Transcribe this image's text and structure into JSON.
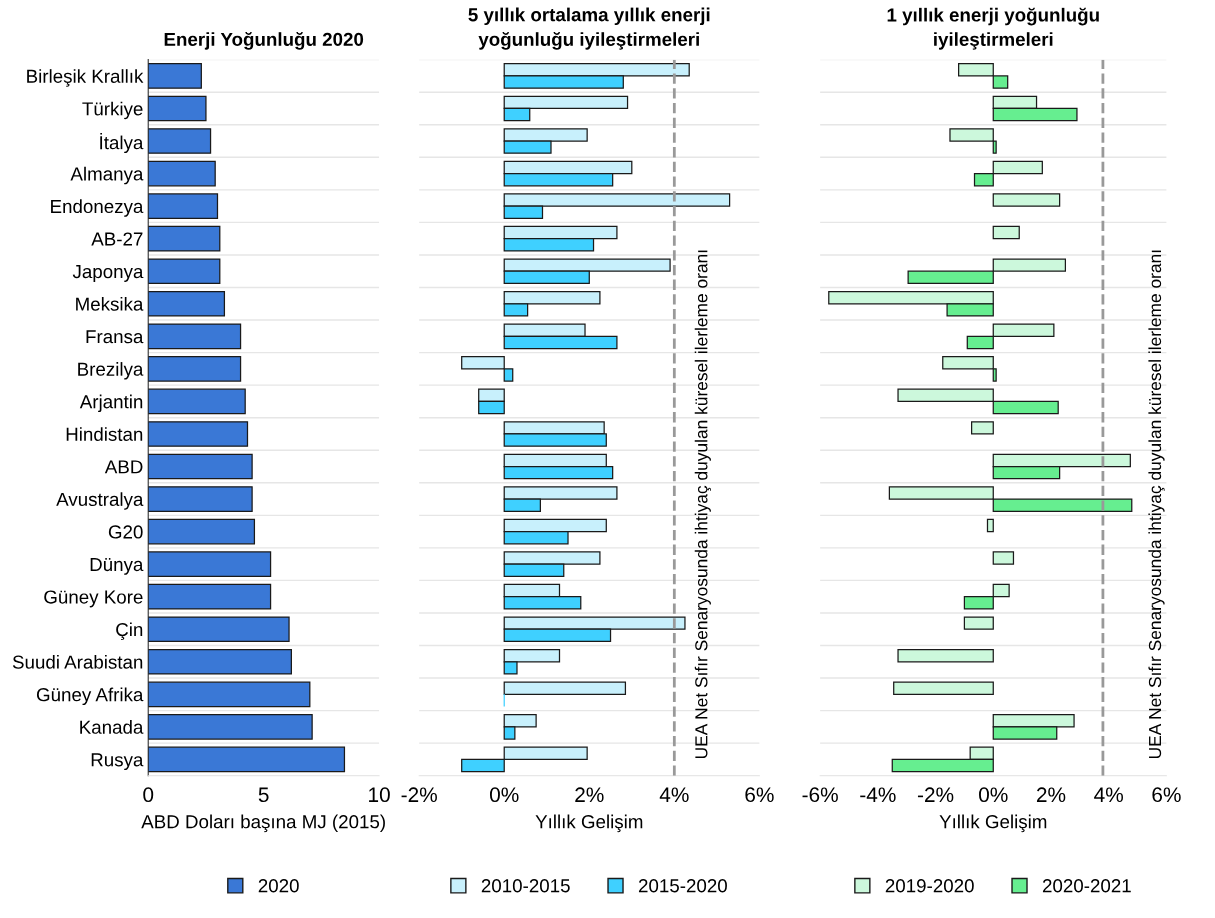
{
  "chart_data": [
    {
      "type": "bar",
      "orientation": "horizontal",
      "title": "Enerji Yoğunluğu 2020",
      "xlabel": "ABD Doları başına MJ (2015)",
      "categories": [
        "Birleşik Krallık",
        "Türkiye",
        "İtalya",
        "Almanya",
        "Endonezya",
        "AB-27",
        "Japonya",
        "Meksika",
        "Fransa",
        "Brezilya",
        "Arjantin",
        "Hindistan",
        "ABD",
        "Avustralya",
        "G20",
        "Dünya",
        "Güney Kore",
        "Çin",
        "Suudi Arabistan",
        "Güney Afrika",
        "Kanada",
        "Rusya"
      ],
      "series": [
        {
          "name": "2020",
          "color": "#3a78d6",
          "values": [
            2.3,
            2.5,
            2.7,
            2.9,
            3.0,
            3.1,
            3.1,
            3.3,
            4.0,
            4.0,
            4.2,
            4.3,
            4.5,
            4.5,
            4.6,
            5.3,
            5.3,
            6.1,
            6.2,
            7.0,
            7.1,
            8.5
          ]
        }
      ],
      "xlim": [
        0,
        10
      ],
      "xticks": [
        0,
        5,
        10
      ],
      "grid": "y",
      "legend": "bottom"
    },
    {
      "type": "bar",
      "orientation": "horizontal",
      "title": "5 yıllık ortalama yıllık enerji yoğunluğu iyileştirmeleri",
      "xlabel": "Yıllık Gelişim",
      "categories": [
        null,
        null,
        null,
        null,
        null,
        null,
        null,
        null,
        null,
        null,
        null,
        null,
        null,
        null,
        null,
        null,
        null,
        null,
        null,
        null,
        null,
        null
      ],
      "series": [
        {
          "name": "2010-2015",
          "color": "#c8f0fc",
          "values": [
            4.35,
            2.9,
            1.95,
            3.0,
            5.3,
            2.65,
            3.9,
            2.25,
            1.9,
            -1.0,
            -0.6,
            2.35,
            2.4,
            2.65,
            2.4,
            2.25,
            1.3,
            4.25,
            1.3,
            2.85,
            0.75,
            1.95
          ]
        },
        {
          "name": "2015-2020",
          "color": "#3fd0ff",
          "values": [
            2.8,
            0.6,
            1.1,
            2.55,
            0.9,
            2.1,
            2.0,
            0.55,
            2.65,
            0.2,
            -0.6,
            2.4,
            2.55,
            0.85,
            1.5,
            1.4,
            1.8,
            2.5,
            0.3,
            0,
            0.25,
            -1.0
          ]
        }
      ],
      "xlim": [
        -2,
        6
      ],
      "xticks": [
        {
          "value": -2,
          "label": "-2%"
        },
        {
          "value": 0,
          "label": "0%"
        },
        {
          "value": 2,
          "label": "2%"
        },
        {
          "value": 4,
          "label": "4%"
        },
        {
          "value": 6,
          "label": "6%"
        }
      ],
      "ref_lines": [
        {
          "axis": "x",
          "value": 4,
          "label": "UEA Net Sıfır Senaryosunda ihtiyaç duyulan küresel ilerleme oranı",
          "color": "#999999",
          "line_style": "dashed"
        }
      ],
      "tick_labels": "x",
      "grid": "y",
      "legend": "bottom"
    },
    {
      "type": "bar",
      "orientation": "horizontal",
      "title": "1 yıllık enerji yoğunluğu iyileştirmeleri",
      "xlabel": "Yıllık Gelişim",
      "categories": [
        null,
        null,
        null,
        null,
        null,
        null,
        null,
        null,
        null,
        null,
        null,
        null,
        null,
        null,
        null,
        null,
        null,
        null,
        null,
        null,
        null,
        null
      ],
      "series": [
        {
          "name": "2019-2020",
          "color": "#ccf8dc",
          "values": [
            -1.2,
            1.5,
            -1.5,
            1.7,
            2.3,
            0.9,
            2.5,
            -5.7,
            2.1,
            -1.75,
            -3.3,
            -0.75,
            4.75,
            -3.6,
            -0.2,
            0.7,
            0.55,
            -1.0,
            -3.3,
            -3.45,
            2.8,
            -0.8
          ]
        },
        {
          "name": "2020-2021",
          "color": "#66ee90",
          "values": [
            0.5,
            2.9,
            0.1,
            -0.65,
            null,
            null,
            -2.95,
            -1.6,
            -0.9,
            0.1,
            2.25,
            null,
            2.3,
            4.8,
            null,
            null,
            -1.0,
            null,
            null,
            null,
            2.2,
            -3.5
          ]
        }
      ],
      "xlim": [
        -6,
        6
      ],
      "xticks": [
        {
          "value": -6,
          "label": "-6%"
        },
        {
          "value": -4,
          "label": "-4%"
        },
        {
          "value": -2,
          "label": "-2%"
        },
        {
          "value": 0,
          "label": "0%"
        },
        {
          "value": 2,
          "label": "2%"
        },
        {
          "value": 4,
          "label": "4%"
        },
        {
          "value": 6,
          "label": "6%"
        }
      ],
      "ref_lines": [
        {
          "axis": "x",
          "value": 3.8,
          "label": "UEA Net Sıfır Senaryosunda ihtiyaç duyulan küresel ilerleme oranı",
          "color": "#999999",
          "line_style": "dashed"
        }
      ],
      "tick_labels": "x",
      "grid": "y",
      "legend": "bottom"
    }
  ]
}
